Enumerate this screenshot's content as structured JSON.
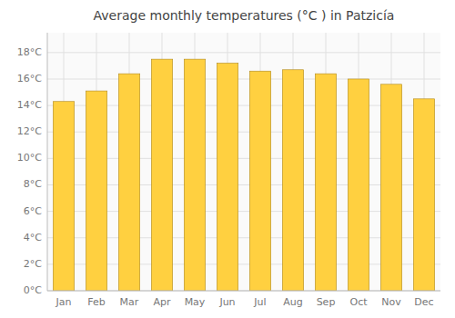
{
  "chart_data": {
    "type": "bar",
    "title": "Average monthly temperatures (°C ) in Patzicía",
    "categories": [
      "Jan",
      "Feb",
      "Mar",
      "Apr",
      "May",
      "Jun",
      "Jul",
      "Aug",
      "Sep",
      "Oct",
      "Nov",
      "Dec"
    ],
    "values": [
      14.3,
      15.1,
      16.4,
      17.5,
      17.5,
      17.2,
      16.6,
      16.7,
      16.4,
      16.0,
      15.6,
      14.5
    ],
    "color": "#FFD040",
    "ylim": [
      0,
      19.5
    ],
    "yticks": [
      {
        "value": 0,
        "label": "0°C"
      },
      {
        "value": 2,
        "label": "2°C"
      },
      {
        "value": 4,
        "label": "4°C"
      },
      {
        "value": 6,
        "label": "6°C"
      },
      {
        "value": 8,
        "label": "8°C"
      },
      {
        "value": 10,
        "label": "10°C"
      },
      {
        "value": 12,
        "label": "12°C"
      },
      {
        "value": 14,
        "label": "14°C"
      },
      {
        "value": 16,
        "label": "16°C"
      },
      {
        "value": 18,
        "label": "18°C"
      }
    ],
    "grid": true
  }
}
